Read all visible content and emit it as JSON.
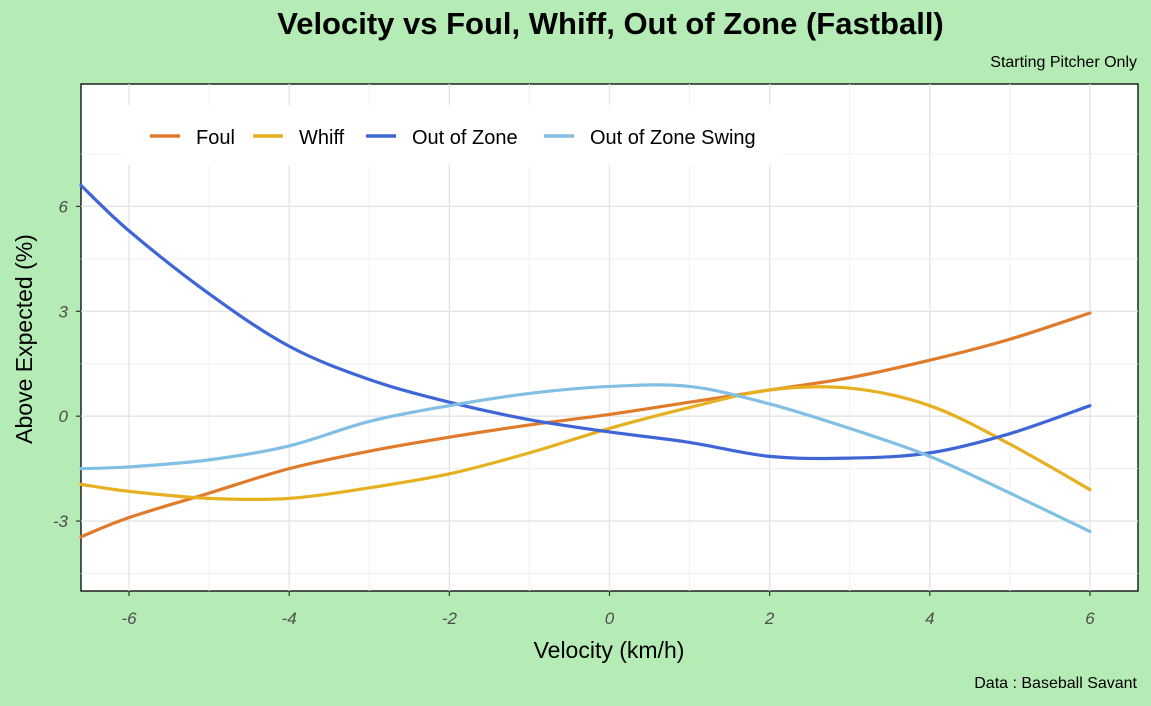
{
  "title": "Velocity vs Foul, Whiff, Out of Zone (Fastball)",
  "subtitle": "Starting Pitcher Only",
  "caption": "Data : Baseball Savant",
  "chart_data": {
    "type": "line",
    "xlabel": "Velocity (km/h)",
    "ylabel": "Above Expected (%)",
    "xlim": [
      -6.6,
      6.6
    ],
    "ylim": [
      -5,
      9.5
    ],
    "xticks": [
      -6,
      -4,
      -2,
      0,
      2,
      4,
      6
    ],
    "yticks": [
      -3,
      0,
      3,
      6
    ],
    "xtick_labels": [
      "-6",
      "-4",
      "-2",
      "0",
      "2",
      "4",
      "6"
    ],
    "ytick_labels": [
      "-3",
      "0",
      "3",
      "6"
    ],
    "grid": true,
    "legend_position": "top-left",
    "x": [
      -6.6,
      -6,
      -5,
      -4,
      -3,
      -2,
      -1,
      0,
      1,
      2,
      3,
      4,
      5,
      6
    ],
    "series": [
      {
        "name": "Foul",
        "color": "#e07b2c",
        "values": [
          -3.45,
          -2.9,
          -2.2,
          -1.5,
          -1.0,
          -0.6,
          -0.25,
          0.05,
          0.4,
          0.75,
          1.1,
          1.6,
          2.2,
          2.95
        ]
      },
      {
        "name": "Whiff",
        "color": "#e6b020",
        "values": [
          -1.95,
          -2.15,
          -2.35,
          -2.35,
          -2.05,
          -1.65,
          -1.05,
          -0.35,
          0.25,
          0.75,
          0.8,
          0.3,
          -0.8,
          -2.1
        ]
      },
      {
        "name": "Out of Zone",
        "color": "#3f66d6",
        "values": [
          6.6,
          5.3,
          3.5,
          2.0,
          1.05,
          0.4,
          -0.1,
          -0.45,
          -0.75,
          -1.15,
          -1.2,
          -1.05,
          -0.5,
          0.3
        ]
      },
      {
        "name": "Out of Zone Swing",
        "color": "#82bfe4",
        "values": [
          -1.5,
          -1.45,
          -1.25,
          -0.85,
          -0.15,
          0.3,
          0.65,
          0.85,
          0.85,
          0.35,
          -0.35,
          -1.15,
          -2.2,
          -3.3
        ]
      }
    ]
  }
}
